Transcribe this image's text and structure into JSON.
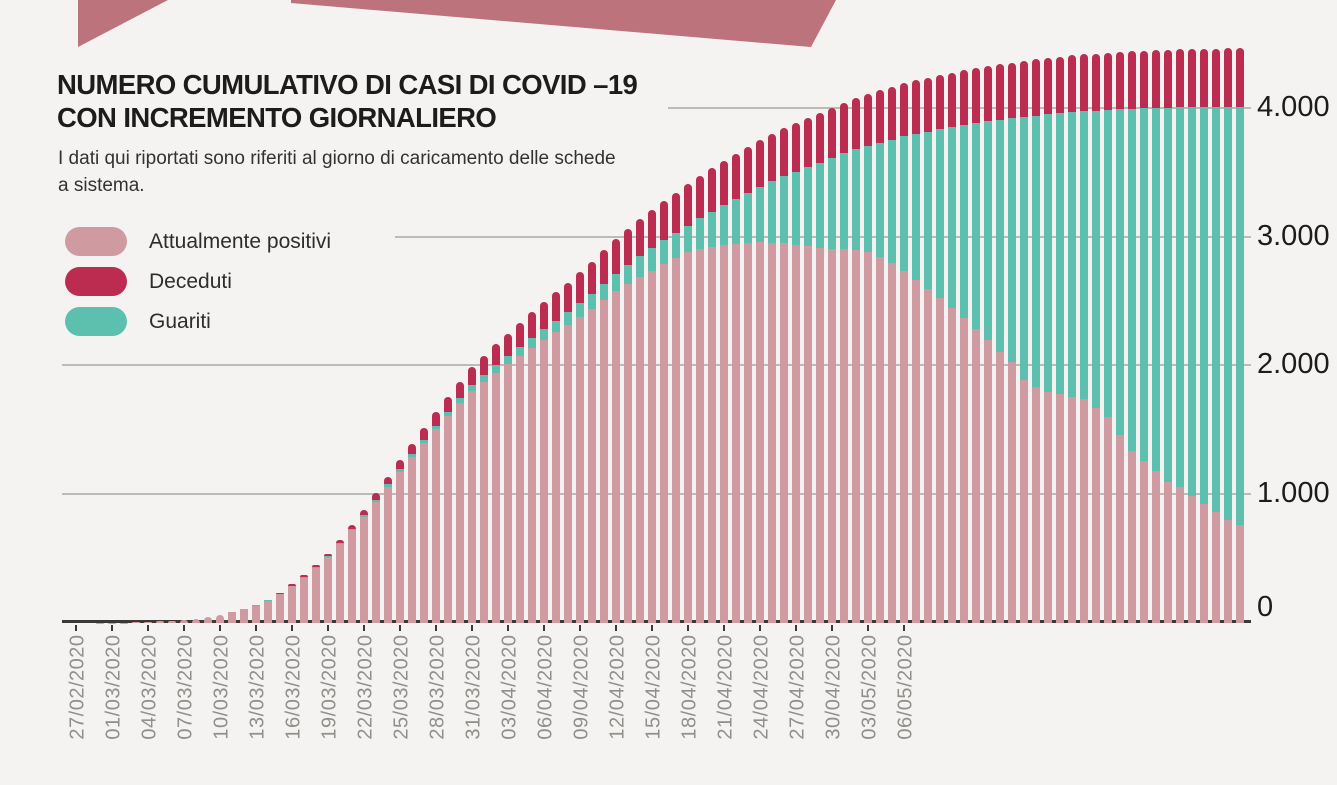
{
  "header": {
    "title_line1": "NUMERO CUMULATIVO DI CASI DI COVID –19",
    "title_line2": "CON INCREMENTO GIORNALIERO",
    "subtitle": "I dati qui riportati sono riferiti al giorno di caricamento delle schede a sistema."
  },
  "legend": {
    "items": [
      {
        "label": "Attualmente positivi",
        "color": "#d09aa1"
      },
      {
        "label": "Deceduti",
        "color": "#bb2c50"
      },
      {
        "label": "Guariti",
        "color": "#5dbfae"
      }
    ]
  },
  "colors": {
    "background": "#f4f3f1",
    "banner": "#bd737b",
    "gridline": "#bcbbb8",
    "axis": "#3a3936",
    "x_label": "#908f8c",
    "y_label": "#1d1c1a",
    "attualmente_positivi": "#d09aa1",
    "deceduti": "#bb2c50",
    "guariti": "#5dbfae"
  },
  "chart_data": {
    "type": "bar",
    "stacked": true,
    "stack_order_bottom_to_top": [
      "attualmente_positivi",
      "guariti",
      "deceduti"
    ],
    "title": "NUMERO CUMULATIVO DI CASI DI COVID –19 CON INCREMENTO GIORNALIERO",
    "xlabel": "",
    "ylabel": "",
    "grid": "horizontal",
    "legend_position": "top-left",
    "ylim": [
      0,
      4500
    ],
    "n_bars": 98,
    "x_tick_every": 3,
    "x_tick_labels": [
      "27/02/2020",
      "01/03/2020",
      "04/03/2020",
      "07/03/2020",
      "10/03/2020",
      "13/03/2020",
      "16/03/2020",
      "19/03/2020",
      "22/03/2020",
      "25/03/2020",
      "28/03/2020",
      "31/03/2020",
      "03/04/2020",
      "06/04/2020",
      "09/04/2020",
      "12/04/2020",
      "15/04/2020",
      "18/04/2020",
      "21/04/2020",
      "24/04/2020",
      "27/04/2020",
      "30/04/2020",
      "03/05/2020",
      "06/05/2020"
    ],
    "y_ticks": [
      {
        "label": "0",
        "value": 0
      },
      {
        "label": "1.000",
        "value": 1000
      },
      {
        "label": "2.000",
        "value": 2000
      },
      {
        "label": "3.000",
        "value": 3000
      },
      {
        "label": "4.000",
        "value": 4000
      }
    ],
    "series": [
      {
        "name": "Attualmente positivi",
        "key": "attualmente_positivi",
        "color": "#d09aa1",
        "values": [
          0,
          0,
          1,
          2,
          3,
          5,
          8,
          12,
          18,
          25,
          35,
          47,
          62,
          82,
          106,
          136,
          175,
          226,
          287,
          353,
          428,
          512,
          614,
          720,
          825,
          944,
          1062,
          1179,
          1291,
          1401,
          1506,
          1610,
          1710,
          1806,
          1879,
          1949,
          2016,
          2081,
          2144,
          2206,
          2264,
          2320,
          2380,
          2441,
          2511,
          2581,
          2641,
          2694,
          2743,
          2794,
          2839,
          2885,
          2909,
          2927,
          2938,
          2949,
          2958,
          2965,
          2961,
          2955,
          2942,
          2933,
          2922,
          2910,
          2908,
          2899,
          2890,
          2850,
          2800,
          2740,
          2670,
          2600,
          2530,
          2450,
          2370,
          2290,
          2200,
          2110,
          2030,
          1890,
          1840,
          1800,
          1780,
          1760,
          1740,
          1670,
          1600,
          1465,
          1340,
          1260,
          1185,
          1100,
          1060,
          985,
          925,
          865,
          805,
          765
        ]
      },
      {
        "name": "Guariti",
        "key": "guariti",
        "color": "#5dbfae",
        "values": [
          0,
          0,
          0,
          0,
          0,
          0,
          0,
          0,
          0,
          0,
          0,
          0,
          0,
          0,
          0,
          1,
          2,
          2,
          3,
          4,
          5,
          6,
          8,
          10,
          12,
          14,
          17,
          20,
          23,
          27,
          31,
          35,
          40,
          45,
          50,
          56,
          62,
          68,
          75,
          82,
          90,
          98,
          107,
          116,
          126,
          136,
          147,
          160,
          172,
          183,
          195,
          206,
          240,
          275,
          312,
          350,
          390,
          432,
          476,
          522,
          570,
          614,
          660,
          708,
          746,
          786,
          826,
          888,
          960,
          1047,
          1136,
          1224,
          1311,
          1408,
          1504,
          1599,
          1703,
          1806,
          1898,
          2049,
          2109,
          2158,
          2187,
          2215,
          2242,
          2318,
          2393,
          2533,
          2662,
          2746,
          2824,
          2911,
          2953,
          3030,
          3091,
          3152,
          3213,
          3254
        ]
      },
      {
        "name": "Deceduti",
        "key": "deceduti",
        "color": "#bb2c50",
        "values": [
          0,
          0,
          0,
          0,
          0,
          0,
          0,
          0,
          0,
          0,
          0,
          0,
          0,
          1,
          2,
          3,
          5,
          7,
          10,
          13,
          17,
          22,
          28,
          35,
          43,
          52,
          61,
          71,
          81,
          92,
          103,
          115,
          127,
          139,
          151,
          163,
          175,
          187,
          199,
          210,
          221,
          232,
          243,
          253,
          263,
          273,
          282,
          291,
          300,
          308,
          316,
          324,
          331,
          338,
          345,
          351,
          357,
          363,
          368,
          373,
          378,
          383,
          388,
          392,
          396,
          400,
          404,
          407,
          410,
          413,
          416,
          419,
          422,
          424,
          426,
          428,
          430,
          432,
          434,
          436,
          438,
          440,
          441,
          442,
          443,
          444,
          445,
          446,
          447,
          448,
          449,
          450,
          451,
          452,
          453,
          454,
          455,
          456
        ]
      }
    ]
  }
}
